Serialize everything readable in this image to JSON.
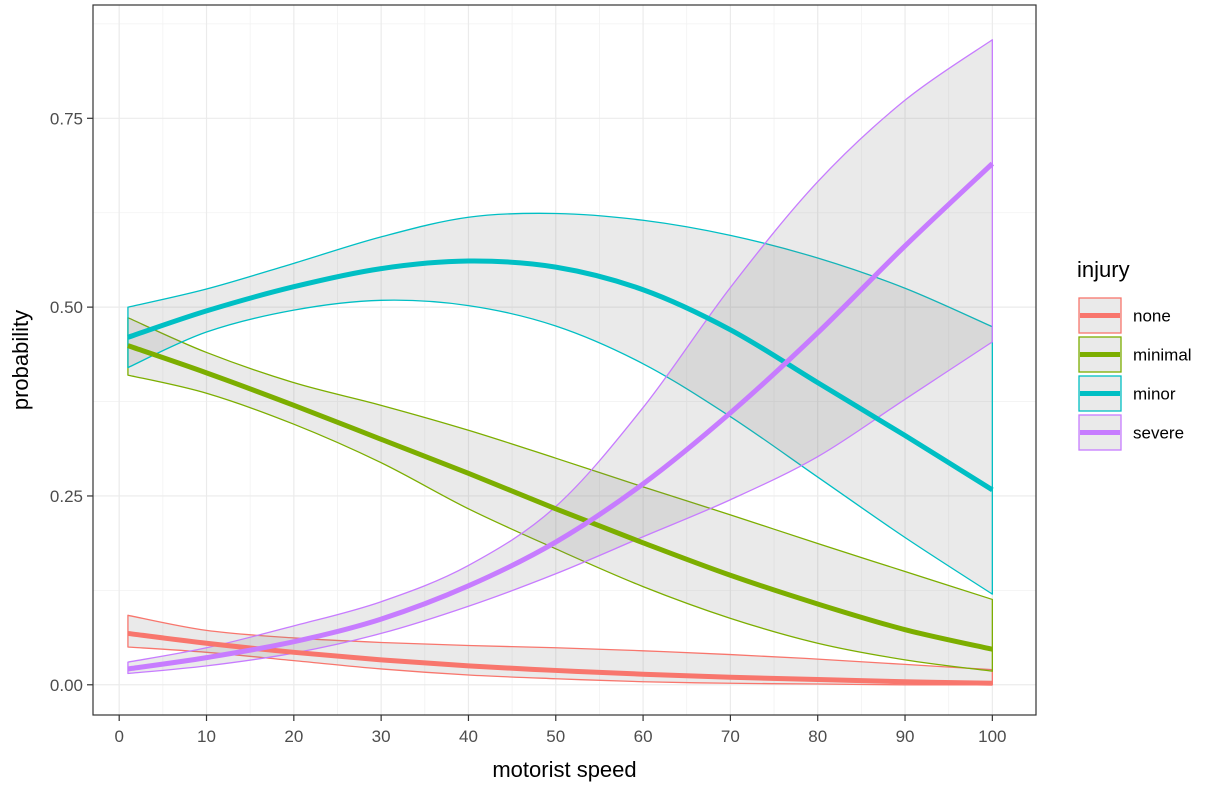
{
  "chart_data": {
    "type": "line",
    "xlabel": "motorist speed",
    "ylabel": "probability",
    "xlim": [
      -3,
      105
    ],
    "ylim": [
      -0.04,
      0.9
    ],
    "x_ticks": [
      0,
      10,
      20,
      30,
      40,
      50,
      60,
      70,
      80,
      90,
      100
    ],
    "y_ticks": [
      0.0,
      0.25,
      0.5,
      0.75
    ],
    "y_tick_labels": [
      "0.00",
      "0.25",
      "0.50",
      "0.75"
    ],
    "grid": true,
    "legend_title": "injury",
    "legend_position": "right",
    "x": [
      1,
      10,
      20,
      30,
      40,
      50,
      60,
      70,
      80,
      90,
      100
    ],
    "series": [
      {
        "name": "none",
        "color": "#F8766D",
        "values": [
          0.068,
          0.055,
          0.043,
          0.033,
          0.025,
          0.019,
          0.014,
          0.01,
          0.007,
          0.004,
          0.002
        ],
        "lower": [
          0.05,
          0.043,
          0.032,
          0.021,
          0.013,
          0.008,
          0.004,
          0.002,
          0.001,
          0.0,
          0.0
        ],
        "upper": [
          0.092,
          0.072,
          0.062,
          0.056,
          0.052,
          0.049,
          0.045,
          0.04,
          0.034,
          0.027,
          0.02
        ]
      },
      {
        "name": "minimal",
        "color": "#7CAE00",
        "values": [
          0.449,
          0.413,
          0.37,
          0.325,
          0.28,
          0.233,
          0.188,
          0.145,
          0.107,
          0.073,
          0.047
        ],
        "lower": [
          0.41,
          0.386,
          0.345,
          0.294,
          0.233,
          0.18,
          0.13,
          0.088,
          0.055,
          0.033,
          0.018
        ],
        "upper": [
          0.486,
          0.44,
          0.4,
          0.37,
          0.337,
          0.3,
          0.262,
          0.225,
          0.187,
          0.15,
          0.113
        ]
      },
      {
        "name": "minor",
        "color": "#00BFC4",
        "values": [
          0.46,
          0.495,
          0.527,
          0.551,
          0.561,
          0.553,
          0.523,
          0.47,
          0.4,
          0.33,
          0.258
        ],
        "lower": [
          0.42,
          0.467,
          0.496,
          0.509,
          0.502,
          0.475,
          0.425,
          0.355,
          0.275,
          0.195,
          0.12
        ],
        "upper": [
          0.5,
          0.524,
          0.558,
          0.593,
          0.619,
          0.624,
          0.615,
          0.595,
          0.565,
          0.525,
          0.474
        ]
      },
      {
        "name": "severe",
        "color": "#C77CFF",
        "values": [
          0.021,
          0.036,
          0.057,
          0.087,
          0.131,
          0.189,
          0.266,
          0.36,
          0.466,
          0.581,
          0.69
        ],
        "lower": [
          0.015,
          0.025,
          0.042,
          0.068,
          0.104,
          0.147,
          0.196,
          0.245,
          0.302,
          0.378,
          0.454
        ],
        "upper": [
          0.03,
          0.049,
          0.078,
          0.11,
          0.158,
          0.236,
          0.367,
          0.526,
          0.666,
          0.774,
          0.854
        ]
      }
    ]
  }
}
